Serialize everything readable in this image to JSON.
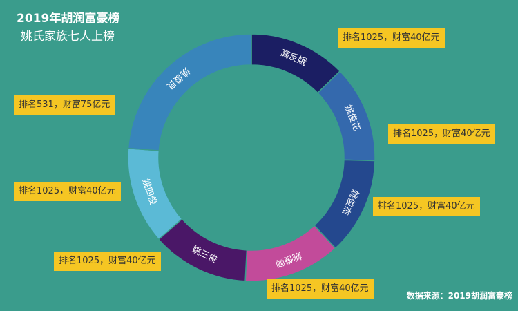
{
  "header": {
    "title": "2019年胡润富豪榜",
    "subtitle": "姚氏家族七人上榜"
  },
  "footer": {
    "source": "数据来源：2019胡润富豪榜"
  },
  "colors": {
    "background": "#3a9c8c",
    "callout": "#f5c623"
  },
  "chart_data": {
    "type": "pie",
    "donut": true,
    "slices": [
      {
        "label": "高反娥",
        "value": 40,
        "rank": "1025",
        "annotation": "排名1025，财富40亿元",
        "color": "#1b1e63"
      },
      {
        "label": "姚俊花",
        "value": 40,
        "rank": "1025",
        "annotation": "排名1025，财富40亿元",
        "color": "#3469ad"
      },
      {
        "label": "姚俊杰",
        "value": 40,
        "rank": "1025",
        "annotation": "排名1025，财富40亿元",
        "color": "#24488e"
      },
      {
        "label": "姚俊卿",
        "value": 40,
        "rank": "1025",
        "annotation": "排名1025，财富40亿元",
        "color": "#c24b9a"
      },
      {
        "label": "姚三俊",
        "value": 40,
        "rank": "1025",
        "annotation": "排名1025，财富40亿元",
        "color": "#4a1767"
      },
      {
        "label": "姚四俊",
        "value": 40,
        "rank": "1025",
        "annotation": "排名1025，财富40亿元",
        "color": "#5bbad6"
      },
      {
        "label": "姚俊良",
        "value": 75,
        "rank": "531",
        "annotation": "排名531，财富75亿元",
        "color": "#3885bb"
      }
    ]
  }
}
